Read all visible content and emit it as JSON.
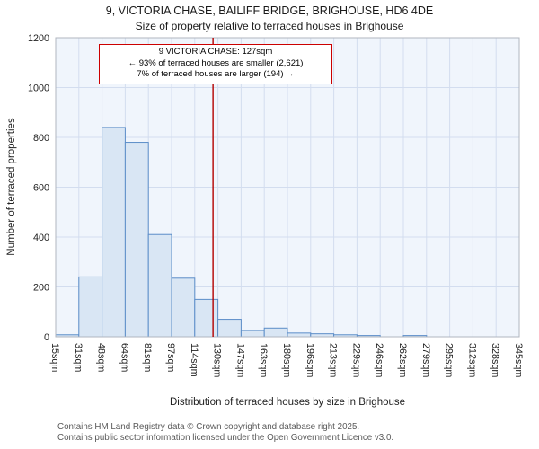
{
  "title": {
    "line1": "9, VICTORIA CHASE, BAILIFF BRIDGE, BRIGHOUSE, HD6 4DE",
    "line2": "Size of property relative to terraced houses in Brighouse"
  },
  "annotation": {
    "line1": "9 VICTORIA CHASE: 127sqm",
    "line2": "← 93% of terraced houses are smaller (2,621)",
    "line3": "7% of terraced houses are larger (194) →"
  },
  "footer": {
    "line1": "Contains HM Land Registry data © Crown copyright and database right 2025.",
    "line2": "Contains public sector information licensed under the Open Government Licence v3.0."
  },
  "chart_data": {
    "type": "bar",
    "title": "9, VICTORIA CHASE, BAILIFF BRIDGE, BRIGHOUSE, HD6 4DE — Size of property relative to terraced houses in Brighouse",
    "xlabel": "Distribution of terraced houses by size in Brighouse",
    "ylabel": "Number of terraced properties",
    "bin_labels": [
      "15sqm",
      "31sqm",
      "48sqm",
      "64sqm",
      "81sqm",
      "97sqm",
      "114sqm",
      "130sqm",
      "147sqm",
      "163sqm",
      "180sqm",
      "196sqm",
      "213sqm",
      "229sqm",
      "246sqm",
      "262sqm",
      "279sqm",
      "295sqm",
      "312sqm",
      "328sqm",
      "345sqm"
    ],
    "bin_edges_sqm": [
      15,
      31,
      48,
      64,
      81,
      97,
      114,
      130,
      147,
      163,
      180,
      196,
      213,
      229,
      246,
      262,
      279,
      295,
      312,
      328,
      345
    ],
    "values": [
      8,
      240,
      840,
      780,
      410,
      235,
      150,
      70,
      25,
      35,
      15,
      12,
      8,
      5,
      0,
      5,
      0,
      0,
      0,
      0
    ],
    "yticks": [
      0,
      200,
      400,
      600,
      800,
      1000,
      1200
    ],
    "ylim": [
      0,
      1200
    ],
    "grid": true,
    "marker": {
      "label": "9 VICTORIA CHASE",
      "value_sqm": 127,
      "smaller_pct": 93,
      "smaller_count": 2621,
      "larger_pct": 7,
      "larger_count": 194
    },
    "colors": {
      "bar_fill": "#d9e6f4",
      "bar_stroke": "#5b8dc8",
      "marker_line": "#b30000",
      "grid": "#d3ddef",
      "plot_bg": "#f0f5fc",
      "frame": "#b0b6bf",
      "tick_text": "#222222"
    }
  }
}
